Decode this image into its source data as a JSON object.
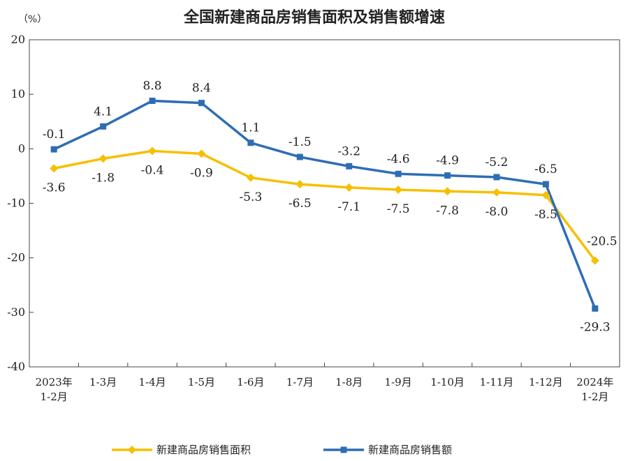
{
  "chart_data": {
    "type": "line",
    "title": "全国新建商品房销售面积及销售额增速",
    "unit_label": "（%）",
    "ylim": [
      -40,
      20
    ],
    "yticks": [
      20,
      10,
      0,
      -10,
      -20,
      -30,
      -40
    ],
    "categories": [
      [
        "2023年",
        "1-2月"
      ],
      [
        "1-3月"
      ],
      [
        "1-4月"
      ],
      [
        "1-5月"
      ],
      [
        "1-6月"
      ],
      [
        "1-7月"
      ],
      [
        "1-8月"
      ],
      [
        "1-9月"
      ],
      [
        "1-10月"
      ],
      [
        "1-11月"
      ],
      [
        "1-12月"
      ],
      [
        "2024年",
        "1-2月"
      ]
    ],
    "series": [
      {
        "name": "新建商品房销售面积",
        "color": "#F5C000",
        "marker": "diamond",
        "values": [
          -3.6,
          -1.8,
          -0.4,
          -0.9,
          -5.3,
          -6.5,
          -7.1,
          -7.5,
          -7.8,
          -8.0,
          -8.5,
          -20.5
        ],
        "labels": [
          "-3.6",
          "-1.8",
          "-0.4",
          "-0.9",
          "-5.3",
          "-6.5",
          "-7.1",
          "-7.5",
          "-7.8",
          "-8.0",
          "-8.5",
          "-20.5"
        ]
      },
      {
        "name": "新建商品房销售额",
        "color": "#2E6DB4",
        "marker": "square",
        "values": [
          -0.1,
          4.1,
          8.8,
          8.4,
          1.1,
          -1.5,
          -3.2,
          -4.6,
          -4.9,
          -5.2,
          -6.5,
          -29.3
        ],
        "labels": [
          "-0.1",
          "4.1",
          "8.8",
          "8.4",
          "1.1",
          "-1.5",
          "-3.2",
          "-4.6",
          "-4.9",
          "-5.2",
          "-6.5",
          "-29.3"
        ]
      }
    ],
    "legend_position": "bottom",
    "grid": false
  }
}
